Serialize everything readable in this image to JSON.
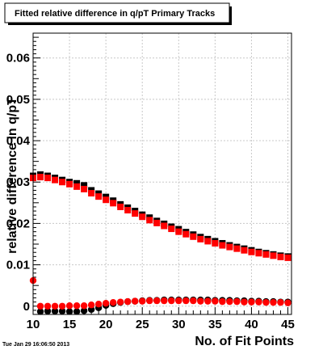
{
  "chart_data": {
    "type": "scatter",
    "title": "Fitted relative difference in q/pT Primary Tracks",
    "xlabel": "No. of Fit Points",
    "ylabel": "relative difference in q/pT",
    "xlim": [
      10,
      45.5
    ],
    "ylim": [
      -0.002,
      0.066
    ],
    "x_ticks": [
      10,
      15,
      20,
      25,
      30,
      35,
      40,
      45
    ],
    "y_ticks": [
      0,
      0.01,
      0.02,
      0.03,
      0.04,
      0.05,
      0.06
    ],
    "y_tick_labels": [
      "0",
      "0.01",
      "0.02",
      "0.03",
      "0.04",
      "0.05",
      "0.06"
    ],
    "grid": true,
    "legend": "none",
    "series": [
      {
        "marker": "square",
        "color": "#000000",
        "x": [
          10,
          11,
          12,
          13,
          14,
          15,
          16,
          17,
          18,
          19,
          20,
          21,
          22,
          23,
          24,
          25,
          26,
          27,
          28,
          29,
          30,
          31,
          32,
          33,
          34,
          35,
          36,
          37,
          38,
          39,
          40,
          41,
          42,
          43,
          44,
          45
        ],
        "y": [
          0.0315,
          0.0318,
          0.0315,
          0.031,
          0.0305,
          0.03,
          0.0297,
          0.0292,
          0.028,
          0.0272,
          0.0264,
          0.0255,
          0.0246,
          0.0238,
          0.023,
          0.0221,
          0.0214,
          0.0206,
          0.0199,
          0.0192,
          0.0186,
          0.0179,
          0.0173,
          0.0167,
          0.0162,
          0.0157,
          0.0152,
          0.0147,
          0.0143,
          0.0139,
          0.0135,
          0.0131,
          0.0128,
          0.0125,
          0.0122,
          0.012
        ]
      },
      {
        "marker": "square",
        "color": "#ff0000",
        "x": [
          10,
          11,
          12,
          13,
          14,
          15,
          16,
          17,
          18,
          19,
          20,
          21,
          22,
          23,
          24,
          25,
          26,
          27,
          28,
          29,
          30,
          31,
          32,
          33,
          34,
          35,
          36,
          37,
          38,
          39,
          40,
          41,
          42,
          43,
          44,
          45
        ],
        "y": [
          0.031,
          0.0312,
          0.031,
          0.0305,
          0.03,
          0.0295,
          0.0289,
          0.0283,
          0.0273,
          0.0265,
          0.0257,
          0.0249,
          0.024,
          0.0232,
          0.0224,
          0.0216,
          0.0208,
          0.0201,
          0.0194,
          0.0187,
          0.018,
          0.0174,
          0.0168,
          0.0162,
          0.0157,
          0.0152,
          0.0147,
          0.0143,
          0.0139,
          0.0135,
          0.0131,
          0.0128,
          0.0125,
          0.0122,
          0.0119,
          0.0117
        ]
      },
      {
        "marker": "circle",
        "color": "#000000",
        "x": [
          11,
          12,
          13,
          14,
          15,
          16,
          17,
          18,
          19,
          20,
          21,
          22,
          23,
          24,
          25,
          26,
          27,
          28,
          29,
          30,
          31,
          32,
          33,
          34,
          35,
          36,
          37,
          38,
          39,
          40,
          41,
          42,
          43,
          44,
          45
        ],
        "y": [
          -0.0013,
          -0.0012,
          -0.0012,
          -0.0012,
          -0.0013,
          -0.0013,
          -0.0011,
          -0.0008,
          -0.0004,
          0.0002,
          0.0006,
          0.0009,
          0.0011,
          0.0012,
          0.0013,
          0.0014,
          0.0014,
          0.0015,
          0.0015,
          0.0015,
          0.0015,
          0.0015,
          0.0015,
          0.0015,
          0.0014,
          0.0014,
          0.0014,
          0.0013,
          0.0013,
          0.0012,
          0.0012,
          0.0011,
          0.0011,
          0.001,
          0.001
        ]
      },
      {
        "marker": "circle",
        "color": "#ff0000",
        "x": [
          10,
          11,
          12,
          13,
          14,
          15,
          16,
          17,
          18,
          19,
          20,
          21,
          22,
          23,
          24,
          25,
          26,
          27,
          28,
          29,
          30,
          31,
          32,
          33,
          34,
          35,
          36,
          37,
          38,
          39,
          40,
          41,
          42,
          43,
          44,
          45
        ],
        "y": [
          0.0062,
          0.0,
          0.0,
          0.0,
          0.0,
          0.0001,
          0.0001,
          0.0001,
          0.0003,
          0.0005,
          0.0007,
          0.0009,
          0.001,
          0.0011,
          0.0012,
          0.0012,
          0.0013,
          0.0013,
          0.0013,
          0.0013,
          0.0013,
          0.0013,
          0.0013,
          0.0012,
          0.0012,
          0.0012,
          0.0011,
          0.0011,
          0.0011,
          0.001,
          0.001,
          0.001,
          0.0009,
          0.0009,
          0.0009,
          0.0008
        ]
      }
    ]
  },
  "footer": "Tue Jan 29 16:06:50 2013",
  "colors": {
    "black": "#000000",
    "red": "#ff0000",
    "grid": "#c8c8c8"
  }
}
